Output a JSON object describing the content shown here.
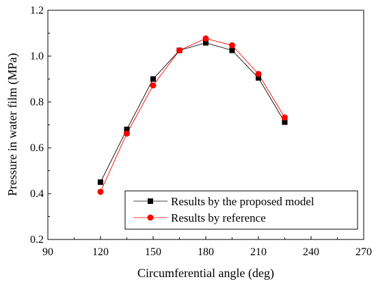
{
  "chart_data": {
    "type": "line",
    "title": "",
    "xlabel": "Circumferential angle (deg)",
    "ylabel": "Pressure in water film (MPa)",
    "xlim": [
      90,
      270
    ],
    "ylim": [
      0.2,
      1.2
    ],
    "xticks": [
      90,
      120,
      150,
      180,
      210,
      240,
      270
    ],
    "yticks": [
      0.2,
      0.4,
      0.6,
      0.8,
      1.0,
      1.2
    ],
    "xtick_labels": [
      "90",
      "120",
      "150",
      "180",
      "210",
      "240",
      "270"
    ],
    "ytick_labels": [
      "0.2",
      "0.4",
      "0.6",
      "0.8",
      "1.0",
      "1.2"
    ],
    "grid": false,
    "legend_position": "bottom-right",
    "series": [
      {
        "name": "Results by the proposed model",
        "color": "#000000",
        "marker": "square",
        "x": [
          120,
          135,
          150,
          165,
          180,
          195,
          210,
          225
        ],
        "y": [
          0.45,
          0.68,
          0.9,
          1.025,
          1.058,
          1.025,
          0.905,
          0.712
        ]
      },
      {
        "name": "Results by reference",
        "color": "#ff0000",
        "marker": "circle",
        "x": [
          120,
          135,
          150,
          165,
          180,
          195,
          210,
          225
        ],
        "y": [
          0.408,
          0.662,
          0.872,
          1.025,
          1.077,
          1.047,
          0.922,
          0.732
        ]
      }
    ]
  }
}
